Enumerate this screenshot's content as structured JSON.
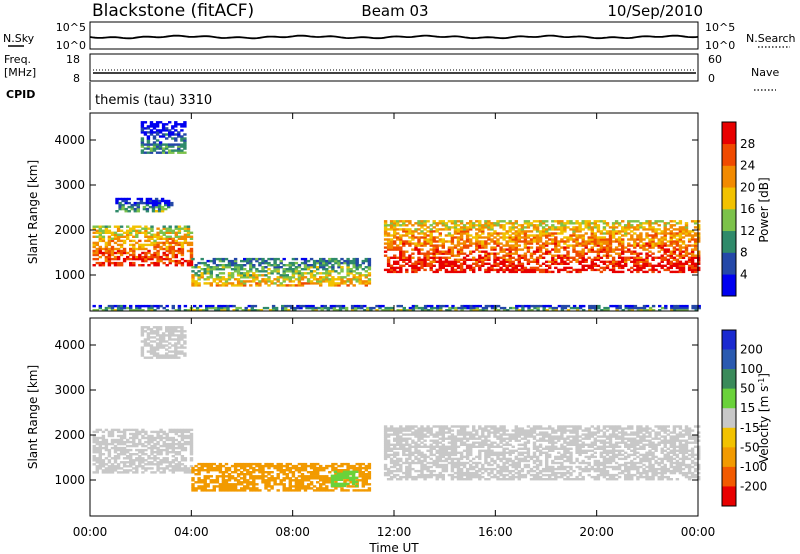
{
  "header": {
    "station": "Blackstone (fitACF)",
    "beam": "Beam 03",
    "date": "10/Sep/2010"
  },
  "panels": {
    "nsky": {
      "label": "N.Sky",
      "right_label": "N.Search",
      "ticks": [
        "10^5",
        "10^0"
      ],
      "right_ticks": [
        "10^5",
        "10^0"
      ]
    },
    "freq": {
      "label_line1": "Freq.",
      "label_line2": "[MHz]",
      "ticks": [
        "18",
        "8"
      ],
      "right_label": "Nave",
      "right_ticks": [
        "60",
        "0"
      ]
    },
    "cpid": {
      "label": "CPID",
      "value": "themis (tau) 3310"
    }
  },
  "colors": {
    "power_scale": [
      "#0000f0",
      "#2448a8",
      "#2f8a6a",
      "#7cc24a",
      "#f2c200",
      "#f28a00",
      "#f04a00",
      "#e80000"
    ],
    "velocity_scale": [
      "#e80000",
      "#f25a00",
      "#f29a00",
      "#f2c200",
      "#c8c8c8",
      "#6ad23a",
      "#3a8a5a",
      "#2a5ab0",
      "#1a2ad0"
    ]
  },
  "chart_data": [
    {
      "type": "heatmap",
      "title": "Power",
      "xlabel": "Time UT",
      "ylabel": "Slant Range [km]",
      "x_ticks": [
        "00:00",
        "04:00",
        "08:00",
        "12:00",
        "16:00",
        "20:00",
        "00:00"
      ],
      "y_ticks": [
        "1000",
        "2000",
        "3000",
        "4000"
      ],
      "ylim": [
        200,
        4600
      ],
      "xlim_hours": [
        0,
        24
      ],
      "colorbar_label": "Power [dB]",
      "colorbar_ticks": [
        "4",
        "8",
        "12",
        "16",
        "20",
        "24",
        "28"
      ],
      "colorbar_range": [
        0,
        32
      ],
      "regions": [
        {
          "t0": 0.1,
          "t1": 4.0,
          "r0": 1200,
          "r1": 2100,
          "value": 22
        },
        {
          "t0": 4.0,
          "t1": 11.0,
          "r0": 750,
          "r1": 1350,
          "value": 14
        },
        {
          "t0": 11.6,
          "t1": 24.0,
          "r0": 1050,
          "r1": 2200,
          "value": 24
        },
        {
          "t0": 1.0,
          "t1": 3.2,
          "r0": 2400,
          "r1": 2700,
          "value": 6
        },
        {
          "t0": 2.0,
          "t1": 3.8,
          "r0": 3700,
          "r1": 4400,
          "value": 5
        },
        {
          "t0": 0.1,
          "t1": 24.0,
          "r0": 200,
          "r1": 320,
          "value": 7
        }
      ]
    },
    {
      "type": "heatmap",
      "title": "Velocity",
      "xlabel": "Time UT",
      "ylabel": "Slant Range [km]",
      "x_ticks": [
        "00:00",
        "04:00",
        "08:00",
        "12:00",
        "16:00",
        "20:00",
        "00:00"
      ],
      "y_ticks": [
        "1000",
        "2000",
        "3000",
        "4000"
      ],
      "ylim": [
        200,
        4600
      ],
      "xlim_hours": [
        0,
        24
      ],
      "colorbar_label": "Velocity [m s",
      "colorbar_label_sup": "-1",
      "colorbar_label_end": "]",
      "colorbar_ticks": [
        "200",
        "100",
        "50",
        "15",
        "-15",
        "-50",
        "-100",
        "-200"
      ],
      "regions": [
        {
          "t0": 0.1,
          "t1": 4.0,
          "r0": 1150,
          "r1": 2100,
          "value": 0
        },
        {
          "t0": 4.0,
          "t1": 11.0,
          "r0": 750,
          "r1": 1350,
          "value": -60
        },
        {
          "t0": 9.5,
          "t1": 10.5,
          "r0": 850,
          "r1": 1200,
          "value": 40
        },
        {
          "t0": 11.6,
          "t1": 24.0,
          "r0": 1000,
          "r1": 2200,
          "value": 0
        },
        {
          "t0": 2.0,
          "t1": 3.8,
          "r0": 3700,
          "r1": 4400,
          "value": 0
        }
      ]
    }
  ]
}
